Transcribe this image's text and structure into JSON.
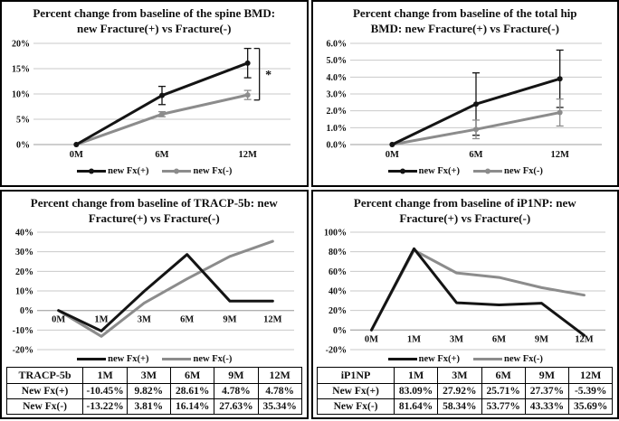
{
  "colors": {
    "fx_plus": "#141414",
    "fx_minus": "#8c8c8c",
    "gridline": "#c9c9c9",
    "zero_axis": "#b0b0b0",
    "text": "#111111",
    "bracket": "#141414"
  },
  "chart_data": [
    {
      "type": "line",
      "title": "Percent change from baseline of the spine BMD: new Fracture(+) vs Fracture(-)",
      "title_lines": [
        "Percent change from baseline of the spine BMD:",
        "new Fracture(+) vs Fracture(-)"
      ],
      "categories": [
        "0M",
        "6M",
        "12M"
      ],
      "series": [
        {
          "name": "new Fx(+)",
          "color_key": "fx_plus",
          "values": [
            0,
            9.7,
            16.1
          ],
          "errors": [
            0,
            1.8,
            2.9
          ]
        },
        {
          "name": "new Fx(-)",
          "color_key": "fx_minus",
          "values": [
            0,
            6.0,
            9.8
          ],
          "errors": [
            0,
            0.5,
            0.9
          ]
        }
      ],
      "ylim": [
        0,
        20
      ],
      "yticks": [
        0,
        5,
        10,
        15,
        20
      ],
      "ytick_labels": [
        "0%",
        "5%",
        "10%",
        "15%",
        "20%"
      ],
      "grid": true,
      "legend_position": "bottom",
      "markers": true,
      "annotation": {
        "type": "significance-bracket",
        "label": "*",
        "at_category": "12M",
        "y_top": 19.0,
        "y_bottom": 8.8
      }
    },
    {
      "type": "line",
      "title": "Percent change from baseline of the total hip BMD: new Fracture(+) vs Fracture(-)",
      "title_lines": [
        "Percent change from baseline of the total hip",
        "BMD: new Fracture(+) vs Fracture(-)"
      ],
      "categories": [
        "0M",
        "6M",
        "12M"
      ],
      "series": [
        {
          "name": "new Fx(+)",
          "color_key": "fx_plus",
          "values": [
            0,
            2.4,
            3.9
          ],
          "errors": [
            0,
            1.85,
            1.7
          ]
        },
        {
          "name": "new Fx(-)",
          "color_key": "fx_minus",
          "values": [
            0,
            0.9,
            1.9
          ],
          "errors": [
            0,
            0.55,
            0.8
          ]
        }
      ],
      "ylim": [
        0,
        6
      ],
      "yticks": [
        0,
        1,
        2,
        3,
        4,
        5,
        6
      ],
      "ytick_labels": [
        "0.0%",
        "1.0%",
        "2.0%",
        "3.0%",
        "4.0%",
        "5.0%",
        "6.0%"
      ],
      "grid": true,
      "legend_position": "bottom",
      "markers": true
    },
    {
      "type": "line",
      "title": "Percent change from baseline of TRACP-5b: new Fracture(+) vs Fracture(-)",
      "title_lines": [
        "Percent change from baseline of TRACP-5b: new",
        "Fracture(+) vs Fracture(-)"
      ],
      "categories": [
        "0M",
        "1M",
        "3M",
        "6M",
        "9M",
        "12M"
      ],
      "series": [
        {
          "name": "new Fx(+)",
          "color_key": "fx_plus",
          "values": [
            0,
            -10.45,
            9.82,
            28.61,
            4.78,
            4.78
          ]
        },
        {
          "name": "new Fx(-)",
          "color_key": "fx_minus",
          "values": [
            0,
            -13.22,
            3.81,
            16.14,
            27.63,
            35.34
          ]
        }
      ],
      "ylim": [
        -20,
        40
      ],
      "yticks": [
        -20,
        -10,
        0,
        10,
        20,
        30,
        40
      ],
      "ytick_labels": [
        "-20%",
        "-10%",
        "0%",
        "10%",
        "20%",
        "30%",
        "40%"
      ],
      "grid": true,
      "legend_position": "bottom",
      "markers": false,
      "x_labels_at_zero": true,
      "table": {
        "header": [
          "TRACP-5b",
          "1M",
          "3M",
          "6M",
          "9M",
          "12M"
        ],
        "rows": [
          [
            "New Fx(+)",
            "-10.45%",
            "9.82%",
            "28.61%",
            "4.78%",
            "4.78%"
          ],
          [
            "New Fx(-)",
            "-13.22%",
            "3.81%",
            "16.14%",
            "27.63%",
            "35.34%"
          ]
        ]
      }
    },
    {
      "type": "line",
      "title": "Percent change from baseline of iP1NP: new Fracture(+) vs Fracture(-)",
      "title_lines": [
        "Percent change from baseline of iP1NP: new",
        "Fracture(+) vs Fracture(-)"
      ],
      "categories": [
        "0M",
        "1M",
        "3M",
        "6M",
        "9M",
        "12M"
      ],
      "series": [
        {
          "name": "new Fx(+)",
          "color_key": "fx_plus",
          "values": [
            0,
            83.09,
            27.92,
            25.71,
            27.37,
            -5.39
          ]
        },
        {
          "name": "new Fx(-)",
          "color_key": "fx_minus",
          "values": [
            0,
            81.64,
            58.34,
            53.77,
            43.33,
            35.69
          ]
        }
      ],
      "ylim": [
        -20,
        100
      ],
      "yticks": [
        -20,
        0,
        20,
        40,
        60,
        80,
        100
      ],
      "ytick_labels": [
        "-20%",
        "0%",
        "20%",
        "40%",
        "60%",
        "80%",
        "100%"
      ],
      "grid": true,
      "legend_position": "bottom",
      "markers": false,
      "x_labels_at_zero": true,
      "table": {
        "header": [
          "iP1NP",
          "1M",
          "3M",
          "6M",
          "9M",
          "12M"
        ],
        "rows": [
          [
            "New Fx(+)",
            "83.09%",
            "27.92%",
            "25.71%",
            "27.37%",
            "-5.39%"
          ],
          [
            "New Fx(-)",
            "81.64%",
            "58.34%",
            "53.77%",
            "43.33%",
            "35.69%"
          ]
        ]
      }
    }
  ]
}
